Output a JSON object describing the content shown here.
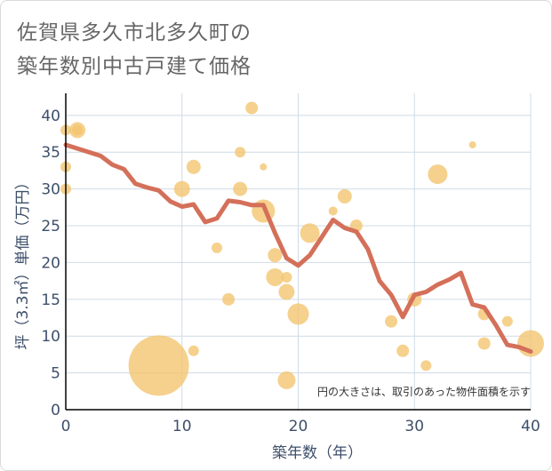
{
  "title_lines": [
    "佐賀県多久市北多久町の",
    "築年数別中古戸建て価格"
  ],
  "chart_data": {
    "type": "scatter",
    "title": "佐賀県多久市北多久町の築年数別中古戸建て価格",
    "xlabel": "築年数（年）",
    "ylabel": "坪（3.3㎡）単価（万円）",
    "xlim": [
      0,
      40
    ],
    "ylim": [
      0,
      43
    ],
    "xticks": [
      0,
      10,
      20,
      30,
      40
    ],
    "yticks": [
      0,
      5,
      10,
      15,
      20,
      25,
      30,
      35,
      40
    ],
    "grid": true,
    "annotation": "円の大きさは、取引のあった物件面積を示す",
    "colors": {
      "bubble": "#f2c46d",
      "line": "#d4705a",
      "axis_text": "#3d4f6a",
      "grid": "#cfdbe6"
    },
    "bubbles": [
      {
        "x": 0,
        "y": 38,
        "size": 6
      },
      {
        "x": 1,
        "y": 38,
        "size": 9
      },
      {
        "x": 1,
        "y": 38,
        "size": 6
      },
      {
        "x": 0,
        "y": 33,
        "size": 6
      },
      {
        "x": 0,
        "y": 30,
        "size": 6
      },
      {
        "x": 8,
        "y": 6,
        "size": 34
      },
      {
        "x": 10,
        "y": 30,
        "size": 9
      },
      {
        "x": 11,
        "y": 33,
        "size": 8
      },
      {
        "x": 11,
        "y": 8,
        "size": 6
      },
      {
        "x": 13,
        "y": 22,
        "size": 6
      },
      {
        "x": 14,
        "y": 15,
        "size": 7
      },
      {
        "x": 15,
        "y": 35,
        "size": 6
      },
      {
        "x": 15,
        "y": 30,
        "size": 8
      },
      {
        "x": 16,
        "y": 41,
        "size": 7
      },
      {
        "x": 17,
        "y": 33,
        "size": 4
      },
      {
        "x": 17,
        "y": 27,
        "size": 13
      },
      {
        "x": 18,
        "y": 21,
        "size": 8
      },
      {
        "x": 18,
        "y": 18,
        "size": 10
      },
      {
        "x": 19,
        "y": 18,
        "size": 6
      },
      {
        "x": 19,
        "y": 16,
        "size": 9
      },
      {
        "x": 19,
        "y": 4,
        "size": 10
      },
      {
        "x": 20,
        "y": 13,
        "size": 12
      },
      {
        "x": 21,
        "y": 24,
        "size": 11
      },
      {
        "x": 23,
        "y": 27,
        "size": 5
      },
      {
        "x": 24,
        "y": 29,
        "size": 8
      },
      {
        "x": 25,
        "y": 25,
        "size": 7
      },
      {
        "x": 28,
        "y": 12,
        "size": 7
      },
      {
        "x": 29,
        "y": 8,
        "size": 7
      },
      {
        "x": 30,
        "y": 15,
        "size": 8
      },
      {
        "x": 31,
        "y": 6,
        "size": 6
      },
      {
        "x": 32,
        "y": 32,
        "size": 11
      },
      {
        "x": 35,
        "y": 36,
        "size": 4
      },
      {
        "x": 36,
        "y": 13,
        "size": 7
      },
      {
        "x": 36,
        "y": 9,
        "size": 7
      },
      {
        "x": 38,
        "y": 12,
        "size": 6
      },
      {
        "x": 40,
        "y": 9,
        "size": 15
      }
    ],
    "line": {
      "x": [
        0,
        1,
        2,
        3,
        4,
        5,
        6,
        7,
        8,
        9,
        10,
        11,
        12,
        13,
        14,
        15,
        16,
        17,
        18,
        19,
        20,
        21,
        22,
        23,
        24,
        25,
        26,
        27,
        28,
        29,
        30,
        31,
        32,
        33,
        34,
        35,
        36,
        37,
        38,
        39,
        40
      ],
      "y": [
        36,
        35.5,
        35,
        34.5,
        33.3,
        32.7,
        30.7,
        30.2,
        29.8,
        28.3,
        27.6,
        27.9,
        25.5,
        26,
        28.4,
        28.2,
        27.8,
        27.8,
        24,
        20.6,
        19.6,
        21,
        23.4,
        25.8,
        24.7,
        24.2,
        21.8,
        17.5,
        15.6,
        12.6,
        15.6,
        16,
        17,
        17.7,
        18.6,
        14.3,
        13.9,
        11.5,
        8.8,
        8.5,
        7.9
      ]
    }
  }
}
